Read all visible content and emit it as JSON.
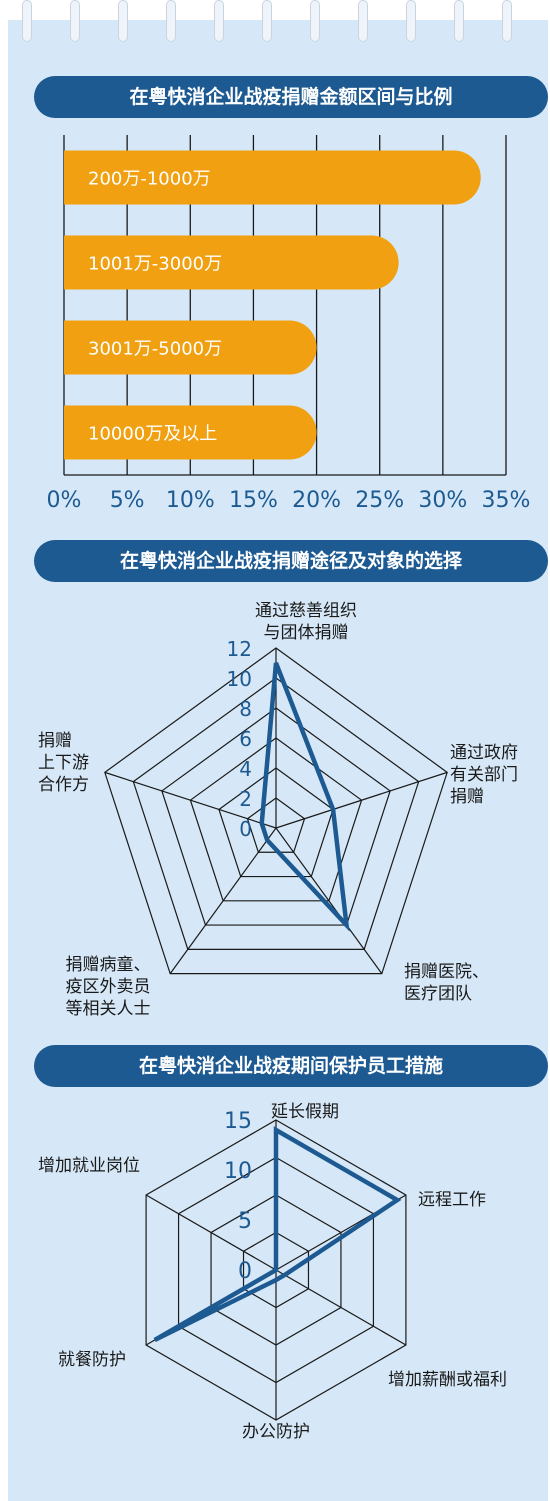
{
  "colors": {
    "background": "#d6e8f7",
    "header_bg": "#1d5a92",
    "bar": "#f0a010",
    "radar_line": "#1d5a92",
    "grid": "#1a1a1a",
    "axis_text": "#1d5a92"
  },
  "sections": {
    "s1_title": "在粤快消企业战疫捐赠金额区间与比例",
    "s2_title": "在粤快消企业战疫捐赠途径及对象的选择",
    "s3_title": "在粤快消企业战疫期间保护员工措施"
  },
  "chart_data": [
    {
      "type": "bar",
      "orientation": "horizontal",
      "title": "在粤快消企业战疫捐赠金额区间与比例",
      "categories": [
        "200万-1000万",
        "1001万-3000万",
        "3001万-5000万",
        "10000万及以上"
      ],
      "values": [
        33,
        26.5,
        20,
        20
      ],
      "xlim": [
        0,
        35
      ],
      "x_ticks": [
        "0%",
        "5%",
        "10%",
        "15%",
        "20%",
        "25%",
        "30%",
        "35%"
      ],
      "grid": true
    },
    {
      "type": "radar",
      "title": "在粤快消企业战疫捐赠途径及对象的选择",
      "axes": [
        "通过慈善组织\n与团体捐赠",
        "通过政府\n有关部门\n捐赠",
        "捐赠医院、\n医疗团队",
        "捐赠病童、\n疫区外卖员\n等相关人士",
        "捐赠\n上下游\n合作方"
      ],
      "values": [
        11,
        4,
        8,
        1,
        1
      ],
      "rmax": 12,
      "r_ticks": [
        "0",
        "2",
        "4",
        "6",
        "8",
        "10",
        "12"
      ]
    },
    {
      "type": "radar",
      "title": "在粤快消企业战疫期间保护员工措施",
      "axes": [
        "延长假期",
        "远程工作",
        "增加薪酬或福利",
        "办公防护",
        "就餐防护",
        "增加就业岗位"
      ],
      "values": [
        14,
        14,
        1,
        1,
        14,
        0
      ],
      "rmax": 15,
      "r_ticks": [
        "0",
        "5",
        "10",
        "15"
      ]
    }
  ]
}
